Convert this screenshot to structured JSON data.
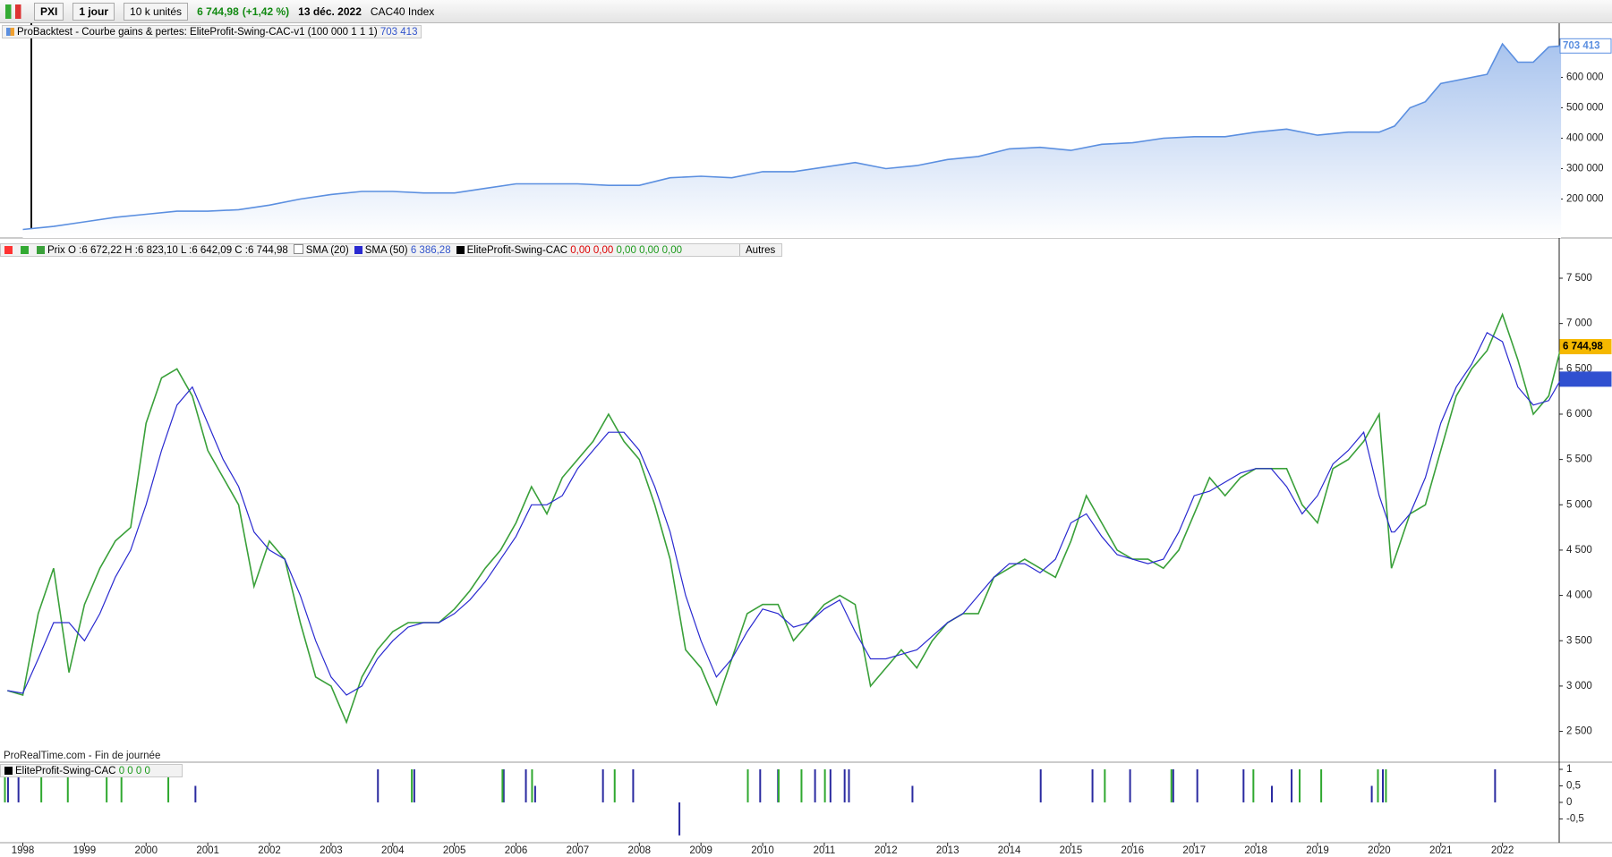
{
  "toolbar": {
    "symbol": "PXI",
    "period": "1 jour",
    "units": "10 k unités",
    "change": "(+1,42 %)",
    "date": "13 déc. 2022",
    "name": "CAC40 Index"
  },
  "chart_data": [
    {
      "type": "area",
      "title": "ProBacktest - Courbe gains & pertes: EliteProfit-Swing-CAC-v1 (100 000 1 1 1)",
      "last_label": {
        "value": 703413,
        "label": "703 413"
      },
      "x": [
        1998.0,
        1998.5,
        1999.0,
        1999.5,
        2000.0,
        2000.5,
        2001.0,
        2001.5,
        2002.0,
        2002.5,
        2003.0,
        2003.5,
        2004.0,
        2004.5,
        2005.0,
        2005.5,
        2006.0,
        2006.5,
        2007.0,
        2007.5,
        2008.0,
        2008.5,
        2009.0,
        2009.5,
        2010.0,
        2010.5,
        2011.0,
        2011.5,
        2012.0,
        2012.5,
        2013.0,
        2013.5,
        2014.0,
        2014.5,
        2015.0,
        2015.5,
        2016.0,
        2016.5,
        2017.0,
        2017.5,
        2018.0,
        2018.5,
        2019.0,
        2019.5,
        2020.0,
        2020.25,
        2020.5,
        2020.75,
        2021.0,
        2021.5,
        2021.75,
        2022.0,
        2022.25,
        2022.5,
        2022.75,
        2022.95
      ],
      "series": [
        {
          "color": "#5b8fe0",
          "values": [
            100000,
            110000,
            125000,
            140000,
            150000,
            160000,
            160000,
            165000,
            180000,
            200000,
            215000,
            225000,
            225000,
            220000,
            220000,
            235000,
            250000,
            250000,
            250000,
            245000,
            245000,
            270000,
            275000,
            270000,
            290000,
            290000,
            305000,
            320000,
            300000,
            310000,
            330000,
            340000,
            365000,
            370000,
            360000,
            380000,
            385000,
            400000,
            405000,
            405000,
            420000,
            430000,
            410000,
            420000,
            420000,
            440000,
            500000,
            520000,
            580000,
            600000,
            610000,
            710000,
            650000,
            650000,
            700000,
            703413
          ]
        }
      ],
      "xlim": [
        1997.63,
        2022.92
      ],
      "ylim": [
        72000,
        772000
      ],
      "yticks": [
        {
          "value": 200000,
          "label": "200 000"
        },
        {
          "value": 300000,
          "label": "300 000"
        },
        {
          "value": 400000,
          "label": "400 000"
        },
        {
          "value": 500000,
          "label": "500 000"
        },
        {
          "value": 600000,
          "label": "600 000"
        }
      ]
    },
    {
      "type": "line",
      "annotation": "ProRealTime.com - Fin de journée",
      "last_labels": [
        {
          "value": 6744.98,
          "label": "6 744,98",
          "color": "#f5b800"
        },
        {
          "value": 6386.28,
          "label": "6 386,28",
          "color": "#3050d0"
        }
      ],
      "legend": {
        "ohlc": "O :6 672,22 H :6 823,10 L :6 642,09 C :6 744,98",
        "sma20": "SMA (20)",
        "indicator": "EliteProfit-Swing-CAC",
        "indicator_values": [
          "0,00",
          "0,00",
          "0,00",
          "0,00",
          "0,00"
        ],
        "more": "Autres"
      },
      "x": [
        1997.75,
        1998.0,
        1998.25,
        1998.5,
        1998.75,
        1999.0,
        1999.25,
        1999.5,
        1999.75,
        2000.0,
        2000.25,
        2000.5,
        2000.75,
        2001.0,
        2001.25,
        2001.5,
        2001.75,
        2002.0,
        2002.25,
        2002.5,
        2002.75,
        2003.0,
        2003.25,
        2003.5,
        2003.75,
        2004.0,
        2004.25,
        2004.5,
        2004.75,
        2005.0,
        2005.25,
        2005.5,
        2005.75,
        2006.0,
        2006.25,
        2006.5,
        2006.75,
        2007.0,
        2007.25,
        2007.5,
        2007.75,
        2008.0,
        2008.25,
        2008.5,
        2008.75,
        2009.0,
        2009.25,
        2009.5,
        2009.75,
        2010.0,
        2010.25,
        2010.5,
        2010.75,
        2011.0,
        2011.25,
        2011.5,
        2011.75,
        2012.0,
        2012.25,
        2012.5,
        2012.75,
        2013.0,
        2013.25,
        2013.5,
        2013.75,
        2014.0,
        2014.25,
        2014.5,
        2014.75,
        2015.0,
        2015.25,
        2015.5,
        2015.75,
        2016.0,
        2016.25,
        2016.5,
        2016.75,
        2017.0,
        2017.25,
        2017.5,
        2017.75,
        2018.0,
        2018.25,
        2018.5,
        2018.75,
        2019.0,
        2019.25,
        2019.5,
        2019.75,
        2020.0,
        2020.2,
        2020.25,
        2020.5,
        2020.75,
        2021.0,
        2021.25,
        2021.5,
        2021.75,
        2022.0,
        2022.25,
        2022.5,
        2022.75,
        2022.95
      ],
      "series": [
        {
          "name": "Prix",
          "color": "#3aa03a",
          "values": [
            2950,
            2900,
            3800,
            4300,
            3150,
            3900,
            4300,
            4600,
            4750,
            5900,
            6400,
            6500,
            6200,
            5600,
            5300,
            5000,
            4100,
            4600,
            4400,
            3700,
            3100,
            3000,
            2600,
            3100,
            3400,
            3600,
            3700,
            3700,
            3700,
            3850,
            4050,
            4300,
            4500,
            4800,
            5200,
            4900,
            5300,
            5500,
            5700,
            6000,
            5700,
            5500,
            5000,
            4400,
            3400,
            3200,
            2800,
            3300,
            3800,
            3900,
            3900,
            3500,
            3700,
            3900,
            4000,
            3900,
            3000,
            3200,
            3400,
            3200,
            3500,
            3700,
            3800,
            3800,
            4200,
            4300,
            4400,
            4300,
            4200,
            4600,
            5100,
            4800,
            4500,
            4400,
            4400,
            4300,
            4500,
            4900,
            5300,
            5100,
            5300,
            5400,
            5400,
            5400,
            5000,
            4800,
            5400,
            5500,
            5700,
            6000,
            4300,
            4400,
            4900,
            5000,
            5600,
            6200,
            6500,
            6700,
            7100,
            6600,
            6000,
            6200,
            6745
          ]
        },
        {
          "name": "SMA (50)",
          "color": "#2a2ad0",
          "values": [
            2950,
            2920,
            3300,
            3700,
            3700,
            3500,
            3800,
            4200,
            4500,
            5000,
            5600,
            6100,
            6300,
            5900,
            5500,
            5200,
            4700,
            4500,
            4400,
            4000,
            3500,
            3100,
            2900,
            3000,
            3300,
            3500,
            3650,
            3700,
            3700,
            3800,
            3950,
            4150,
            4400,
            4650,
            5000,
            5000,
            5100,
            5400,
            5600,
            5800,
            5800,
            5600,
            5200,
            4700,
            4000,
            3500,
            3100,
            3300,
            3600,
            3850,
            3800,
            3650,
            3700,
            3850,
            3950,
            3600,
            3300,
            3300,
            3350,
            3400,
            3550,
            3700,
            3800,
            4000,
            4200,
            4350,
            4350,
            4250,
            4400,
            4800,
            4900,
            4650,
            4450,
            4400,
            4350,
            4400,
            4700,
            5100,
            5150,
            5250,
            5350,
            5400,
            5400,
            5200,
            4900,
            5100,
            5450,
            5600,
            5800,
            5100,
            4700,
            4700,
            4900,
            5300,
            5900,
            6300,
            6550,
            6900,
            6800,
            6300,
            6100,
            6150,
            6386.28
          ]
        }
      ],
      "xlim": [
        1997.63,
        2022.92
      ],
      "ylim": [
        2170,
        7875
      ],
      "yticks": [
        {
          "value": 2500,
          "label": "2 500"
        },
        {
          "value": 3000,
          "label": "3 000"
        },
        {
          "value": 3500,
          "label": "3 500"
        },
        {
          "value": 4000,
          "label": "4 000"
        },
        {
          "value": 4500,
          "label": "4 500"
        },
        {
          "value": 5000,
          "label": "5 000"
        },
        {
          "value": 5500,
          "label": "5 500"
        },
        {
          "value": 6000,
          "label": "6 000"
        },
        {
          "value": 6500,
          "label": "6 500"
        },
        {
          "value": 7000,
          "label": "7 000"
        },
        {
          "value": 7500,
          "label": "7 500"
        }
      ]
    },
    {
      "type": "bar",
      "title": "EliteProfit-Swing-CAC",
      "subtitle": "0 0 0 0",
      "series": [
        {
          "color": "#2a2aa0",
          "x": [
            1997.76,
            1997.93,
            2000.8,
            2003.76,
            2004.35,
            2005.8,
            2006.16,
            2006.31,
            2007.41,
            2007.9,
            2008.65,
            2009.96,
            2010.25,
            2010.85,
            2011.1,
            2011.33,
            2011.4,
            2012.43,
            2014.51,
            2015.35,
            2015.96,
            2016.66,
            2017.05,
            2017.8,
            2018.26,
            2018.58,
            2019.88,
            2020.06,
            2021.88
          ],
          "values": [
            1,
            1,
            0.5,
            1,
            1,
            1,
            1,
            0.5,
            1,
            1,
            -1,
            1,
            1,
            1,
            1,
            1,
            1,
            0.5,
            1,
            1,
            1,
            1,
            1,
            1,
            0.5,
            1,
            0.5,
            1,
            1
          ]
        },
        {
          "color": "#2fa82f",
          "x": [
            1997.71,
            1998.3,
            1998.73,
            1999.36,
            1999.6,
            2000.36,
            2004.31,
            2005.78,
            2006.26,
            2007.6,
            2009.76,
            2010.26,
            2010.63,
            2011.01,
            2015.55,
            2016.63,
            2017.96,
            2018.71,
            2019.06,
            2019.98,
            2020.11
          ],
          "values": [
            1,
            1,
            1,
            1,
            1,
            1,
            1,
            1,
            1,
            1,
            1,
            1,
            1,
            1,
            1,
            1,
            1,
            1,
            1,
            1,
            1
          ]
        }
      ],
      "xlim": [
        1997.63,
        2022.92
      ],
      "ylim": [
        -1.22,
        1.19
      ],
      "yticks": [
        {
          "value": -0.5,
          "label": "-0,5"
        },
        0,
        {
          "value": 0.5,
          "label": "0,5"
        },
        1
      ],
      "xticks": [
        1998,
        1999,
        2000,
        2001,
        2002,
        2003,
        2004,
        2005,
        2006,
        2007,
        2008,
        2009,
        2010,
        2011,
        2012,
        2013,
        2014,
        2015,
        2016,
        2017,
        2018,
        2019,
        2020,
        2021,
        2022
      ]
    }
  ]
}
